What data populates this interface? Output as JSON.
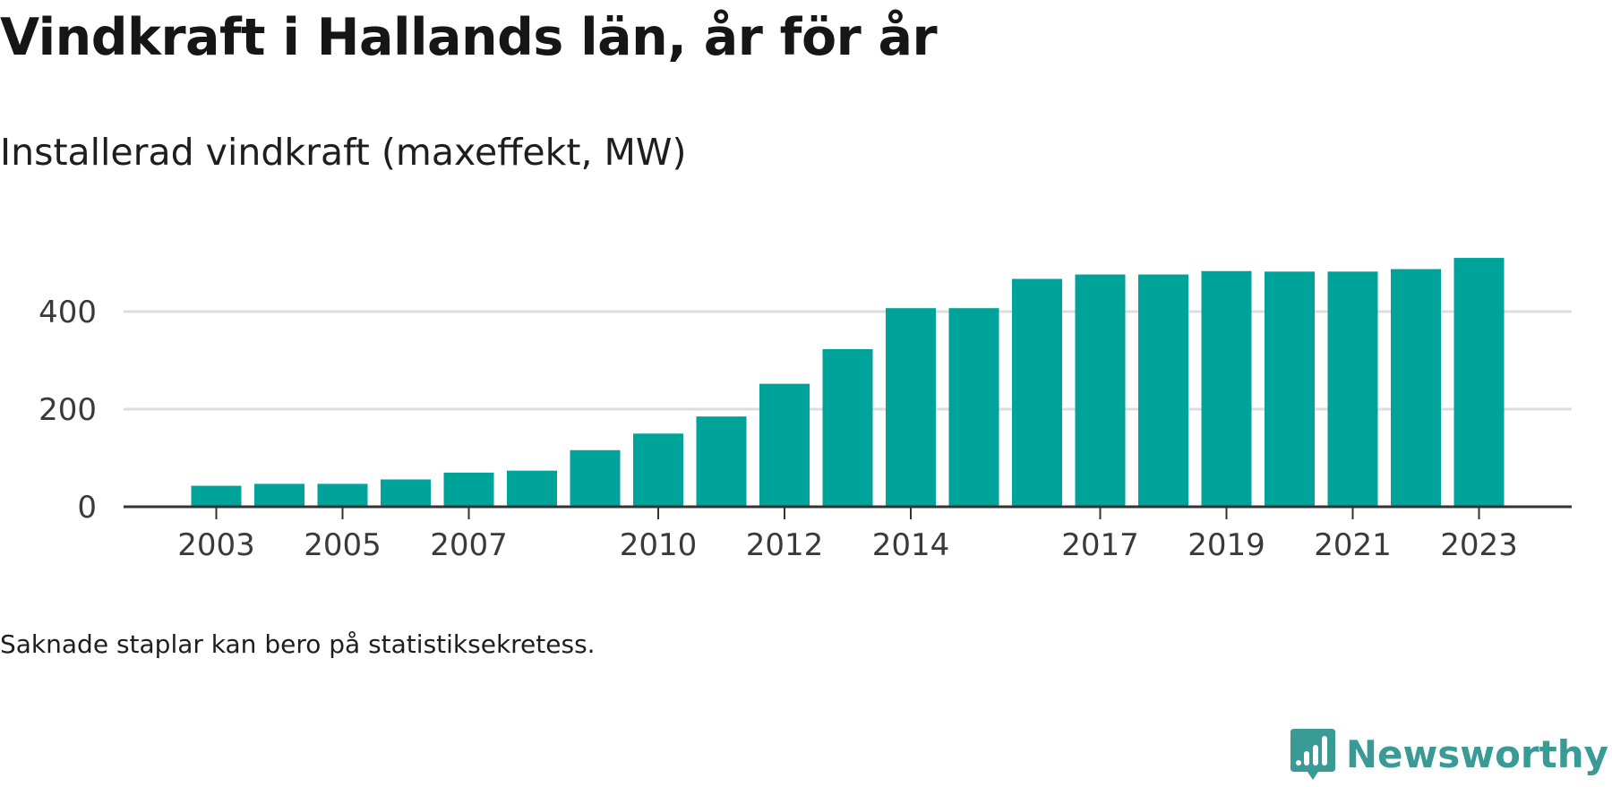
{
  "title": "Vindkraft i Hallands län, år för år",
  "subtitle": "Installerad vindkraft (maxeffekt, MW)",
  "note": "Saknade staplar kan bero på statistiksekretess.",
  "brand": {
    "name": "Newsworthy",
    "logo_icon": "newsworthy-bar-chart-icon",
    "color": "#3a9a95"
  },
  "colors": {
    "bar": "#00a39a",
    "gridline": "#dddddd",
    "axis": "#333333",
    "tick_text": "#3a3a3a"
  },
  "chart_data": {
    "type": "bar",
    "x": [
      2003,
      2004,
      2005,
      2006,
      2007,
      2008,
      2009,
      2010,
      2011,
      2012,
      2013,
      2014,
      2015,
      2016,
      2017,
      2018,
      2019,
      2020,
      2021,
      2022,
      2023
    ],
    "values": [
      43,
      47,
      47,
      56,
      70,
      74,
      116,
      150,
      185,
      252,
      323,
      407,
      407,
      467,
      476,
      476,
      483,
      482,
      482,
      487,
      510
    ],
    "xticks": [
      "2003",
      "2005",
      "2007",
      "2010",
      "2012",
      "2014",
      "2017",
      "2019",
      "2021",
      "2023"
    ],
    "yticks": [
      "0",
      "200",
      "400"
    ],
    "ylim": [
      0,
      520
    ],
    "grid": true,
    "xlabel": "",
    "ylabel": ""
  }
}
